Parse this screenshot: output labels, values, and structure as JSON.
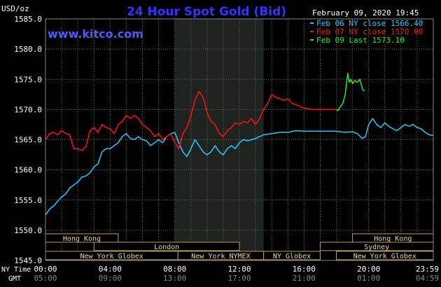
{
  "header": {
    "title": "24 Hour Spot Gold (Bid)",
    "website": "www.kitco.com",
    "datetime": "February 09, 2020 19:45"
  },
  "chart_data": {
    "type": "line",
    "title": "24 Hour Spot Gold (Bid)",
    "ylabel": "USD/oz",
    "xlabel": "",
    "ylim": [
      1545,
      1585
    ],
    "yticks": [
      1545.0,
      1550.0,
      1555.0,
      1560.0,
      1565.0,
      1570.0,
      1575.0,
      1580.0,
      1585.0
    ],
    "ytick_labels": [
      "1545.0",
      "1550.0",
      "1555.0",
      "1560.0",
      "1565.0",
      "1570.0",
      "1575.0",
      "1580.0",
      "1585.0"
    ],
    "xlim": [
      0,
      24
    ],
    "xticks": [
      0,
      4,
      8,
      12,
      16,
      20,
      24
    ],
    "x_labels_ny": [
      "00:00",
      "04:00",
      "08:00",
      "12:00",
      "16:00",
      "20:00",
      "23:59"
    ],
    "x_labels_gmt": [
      "05:00",
      "09:00",
      "13:00",
      "17:00",
      "21:00",
      "01:00",
      "04:59"
    ],
    "x_row_labels": {
      "ny": "NY Time",
      "gmt": "GMT"
    },
    "highlight_range": [
      8.0,
      13.5
    ],
    "grid": true,
    "legend_position": "top-right",
    "legend": [
      {
        "label": "Feb 06 NY close 1566.40",
        "color": "#22ccff"
      },
      {
        "label": "Feb 07 NY close 1570.00",
        "color": "#ff1111"
      },
      {
        "label": "Feb 09 Last 1573.10",
        "color": "#22ee22"
      }
    ],
    "series": [
      {
        "name": "Feb 06",
        "color": "#22ccff",
        "x": [
          0.0,
          0.25,
          0.5,
          0.75,
          1.0,
          1.25,
          1.5,
          1.75,
          2.0,
          2.25,
          2.5,
          2.75,
          3.0,
          3.25,
          3.5,
          3.75,
          4.0,
          4.25,
          4.5,
          4.75,
          5.0,
          5.25,
          5.5,
          5.75,
          6.0,
          6.25,
          6.5,
          6.75,
          7.0,
          7.25,
          7.5,
          7.75,
          8.0,
          8.25,
          8.5,
          8.75,
          9.0,
          9.25,
          9.5,
          9.75,
          10.0,
          10.25,
          10.5,
          10.75,
          11.0,
          11.25,
          11.5,
          11.75,
          12.0,
          12.25,
          12.5,
          12.75,
          13.0,
          13.5,
          14.0,
          14.5,
          15.0,
          15.5,
          16.0,
          16.5,
          17.0,
          17.5,
          18.0,
          18.5,
          19.0,
          19.3,
          19.6,
          19.8,
          20.0,
          20.25,
          20.5,
          20.75,
          21.0,
          21.25,
          21.5,
          21.75,
          22.0,
          22.25,
          22.5,
          22.75,
          23.0,
          23.25,
          23.5,
          23.75,
          23.99
        ],
        "values": [
          1552.5,
          1553.5,
          1554.0,
          1554.8,
          1555.5,
          1556.0,
          1557.0,
          1557.5,
          1558.0,
          1558.8,
          1559.0,
          1559.5,
          1560.5,
          1561.0,
          1563.0,
          1563.5,
          1563.5,
          1564.0,
          1564.5,
          1565.5,
          1566.0,
          1565.2,
          1565.0,
          1565.5,
          1565.0,
          1564.8,
          1564.0,
          1564.5,
          1565.0,
          1564.5,
          1565.5,
          1566.0,
          1566.2,
          1564.5,
          1563.0,
          1562.2,
          1563.5,
          1565.0,
          1564.0,
          1563.0,
          1562.5,
          1563.0,
          1564.0,
          1563.0,
          1562.5,
          1563.5,
          1564.0,
          1563.5,
          1564.5,
          1565.0,
          1564.8,
          1565.0,
          1565.2,
          1565.8,
          1566.0,
          1566.2,
          1566.2,
          1566.5,
          1566.4,
          1566.4,
          1566.4,
          1566.4,
          1566.4,
          1566.2,
          1566.3,
          1566.0,
          1565.2,
          1565.5,
          1567.5,
          1568.5,
          1567.5,
          1567.0,
          1567.8,
          1567.2,
          1566.8,
          1566.5,
          1567.0,
          1567.5,
          1567.2,
          1567.5,
          1567.0,
          1566.8,
          1566.2,
          1565.8,
          1565.7
        ]
      },
      {
        "name": "Feb 07",
        "color": "#ff1111",
        "x": [
          0.0,
          0.25,
          0.5,
          0.75,
          1.0,
          1.25,
          1.5,
          1.75,
          2.0,
          2.25,
          2.5,
          2.75,
          3.0,
          3.25,
          3.5,
          3.75,
          4.0,
          4.25,
          4.5,
          4.75,
          5.0,
          5.25,
          5.5,
          5.75,
          6.0,
          6.25,
          6.5,
          6.75,
          7.0,
          7.25,
          7.5,
          7.75,
          8.0,
          8.25,
          8.5,
          8.75,
          9.0,
          9.25,
          9.5,
          9.75,
          10.0,
          10.25,
          10.5,
          10.75,
          11.0,
          11.25,
          11.5,
          11.75,
          12.0,
          12.25,
          12.5,
          12.75,
          13.0,
          13.25,
          13.5,
          13.75,
          14.0,
          14.25,
          14.5,
          14.75,
          15.0,
          15.25,
          15.5,
          15.75,
          16.0,
          16.5,
          17.0,
          17.5,
          18.0
        ],
        "values": [
          1565.0,
          1566.0,
          1566.2,
          1565.8,
          1566.5,
          1566.0,
          1565.8,
          1563.5,
          1563.5,
          1563.2,
          1563.8,
          1566.5,
          1567.0,
          1566.2,
          1567.5,
          1567.0,
          1566.8,
          1566.0,
          1567.5,
          1568.0,
          1569.0,
          1568.5,
          1569.0,
          1568.5,
          1567.5,
          1567.0,
          1566.5,
          1565.5,
          1566.0,
          1565.0,
          1565.5,
          1566.0,
          1564.5,
          1563.5,
          1566.0,
          1567.0,
          1569.0,
          1571.5,
          1573.0,
          1572.0,
          1569.5,
          1568.0,
          1567.5,
          1566.0,
          1565.5,
          1566.5,
          1567.0,
          1567.8,
          1567.5,
          1568.0,
          1567.8,
          1568.5,
          1567.5,
          1568.5,
          1570.0,
          1571.0,
          1572.5,
          1572.0,
          1571.8,
          1571.5,
          1571.8,
          1571.0,
          1570.8,
          1570.5,
          1570.2,
          1570.0,
          1570.0,
          1570.0,
          1570.0
        ]
      },
      {
        "name": "Feb 09",
        "color": "#22ee22",
        "x": [
          18.0,
          18.1,
          18.25,
          18.4,
          18.55,
          18.7,
          18.8,
          18.9,
          19.0,
          19.15,
          19.3,
          19.45,
          19.55,
          19.65,
          19.75
        ],
        "values": [
          1570.0,
          1569.8,
          1570.5,
          1571.0,
          1572.5,
          1576.0,
          1574.5,
          1575.0,
          1574.3,
          1574.8,
          1574.5,
          1575.0,
          1574.0,
          1573.2,
          1573.1
        ]
      }
    ]
  },
  "sessions": [
    {
      "label": "Hong Kong",
      "start": -1.0,
      "end": 4.5,
      "row": 0
    },
    {
      "label": "Hong Kong",
      "start": 19.0,
      "end": 24.0,
      "row": 0
    },
    {
      "label": "London",
      "start": 3.0,
      "end": 12.0,
      "row": 1
    },
    {
      "label": "Sydney",
      "start": 17.0,
      "end": 24.0,
      "row": 1
    },
    {
      "label": "New York Globex",
      "start": -1.0,
      "end": 8.2,
      "row": 2
    },
    {
      "label": "New York NYMEX",
      "start": 8.2,
      "end": 13.5,
      "row": 2
    },
    {
      "label": "NY Globex",
      "start": 13.5,
      "end": 17.0,
      "row": 2
    },
    {
      "label": "New York Globex",
      "start": 18.0,
      "end": 24.0,
      "row": 2
    }
  ]
}
